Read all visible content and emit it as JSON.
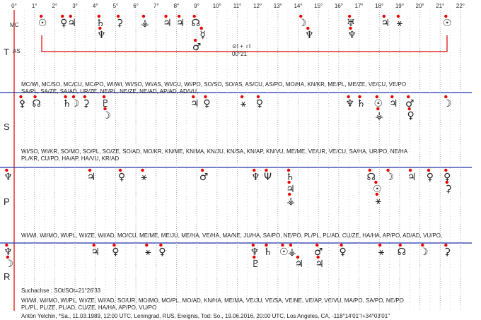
{
  "scale": {
    "ticks": [
      "0°",
      "1°",
      "2°",
      "3°",
      "4°",
      "5°",
      "6°",
      "7°",
      "8°",
      "9°",
      "10°",
      "11°",
      "12°",
      "13°",
      "14°",
      "15°",
      "16°",
      "17°",
      "18°",
      "19°",
      "20°",
      "21°",
      "22°"
    ]
  },
  "side_labels": {
    "top": "MC",
    "bottom": "AS"
  },
  "annotation": {
    "line1": "⊙t + ♁t",
    "line2": "00°21'"
  },
  "rows": [
    {
      "letter": "T",
      "glyphs": [
        {
          "symbol": "☉",
          "deg": 1.4
        },
        {
          "symbol": "♀",
          "deg": 2.45
        },
        {
          "symbol": "♃",
          "deg": 2.85
        },
        {
          "symbol": "♄",
          "deg": 4.25
        },
        {
          "symbol": "♆",
          "deg": 4.3
        },
        {
          "symbol": "⚳",
          "deg": 5.2
        },
        {
          "symbol": "⚶",
          "deg": 6.45
        },
        {
          "symbol": "♃",
          "deg": 7.55
        },
        {
          "symbol": "♃",
          "deg": 8.2
        },
        {
          "symbol": "☊",
          "deg": 8.95
        },
        {
          "symbol": "☿",
          "deg": 9.3
        },
        {
          "symbol": "♂",
          "deg": 9.0
        },
        {
          "symbol": "☽",
          "deg": 14.2
        },
        {
          "symbol": "♆",
          "deg": 14.55
        },
        {
          "symbol": "♅",
          "deg": 16.6
        },
        {
          "symbol": "♆",
          "deg": 16.65
        },
        {
          "symbol": "♃",
          "deg": 18.3
        },
        {
          "symbol": "⚹",
          "deg": 19.0
        },
        {
          "symbol": "☉",
          "deg": 21.35
        }
      ],
      "notes": [
        "MC/WI, MC/SO, MC/CU, MC/PO, WI/WI, WI/SO, WI/AS, WI/CU, WI/PO, SO/SO, SO/AS, AS/CU, AS/PO, MO/HA, KN/KR, ME/PL, ME/ZE, VE/CU, VE/PO",
        "SA/PL, SA/ZE, SA/AD, UR/ZE, NE/PL, NE/ZE, NE/AD, AP/AD, AD/VU,"
      ]
    },
    {
      "letter": "S",
      "glyphs": [
        {
          "symbol": "⚴",
          "deg": 0.4
        },
        {
          "symbol": "☊",
          "deg": 1.1
        },
        {
          "symbol": "♄",
          "deg": 2.6
        },
        {
          "symbol": "☽",
          "deg": 3.0
        },
        {
          "symbol": "⚳",
          "deg": 3.55
        },
        {
          "symbol": "♇",
          "deg": 4.5
        },
        {
          "symbol": "☽",
          "deg": 4.55
        },
        {
          "symbol": "♃",
          "deg": 8.9
        },
        {
          "symbol": "♀",
          "deg": 9.5
        },
        {
          "symbol": "⚹",
          "deg": 11.3
        },
        {
          "symbol": "♀",
          "deg": 12.1
        },
        {
          "symbol": "♆",
          "deg": 16.55
        },
        {
          "symbol": "♄",
          "deg": 17.1
        },
        {
          "symbol": "☉",
          "deg": 17.95
        },
        {
          "symbol": "⚶",
          "deg": 18.0
        },
        {
          "symbol": "♃",
          "deg": 18.7
        },
        {
          "symbol": "♂",
          "deg": 19.5
        },
        {
          "symbol": "♀",
          "deg": 19.55
        },
        {
          "symbol": "☽",
          "deg": 21.35
        }
      ],
      "notes": [
        "WI/SO, WI/KR, SO/MO, SO/PL, SO/ZE, SO/AD, MO/KR, KN/ME, KN/MA, KN/JU, KN/SA, KN/AP, KN/VU, ME/ME, VE/UR, VE/CU, SA/HA, UR/PO, NE/HA",
        "PL/KR, CU/PO, HA/AP, HA/VU, KR/AD"
      ]
    },
    {
      "letter": "P",
      "glyphs": [
        {
          "symbol": "♆",
          "deg": -0.3
        },
        {
          "symbol": "♃",
          "deg": 3.8
        },
        {
          "symbol": "♀",
          "deg": 5.3
        },
        {
          "symbol": "⚹",
          "deg": 6.4
        },
        {
          "symbol": "♂",
          "deg": 9.35
        },
        {
          "symbol": "♆",
          "deg": 11.9
        },
        {
          "symbol": "Ψ",
          "deg": 12.5
        },
        {
          "symbol": "♄",
          "deg": 13.6
        },
        {
          "symbol": "♃",
          "deg": 13.62
        },
        {
          "symbol": "⚶",
          "deg": 13.64
        },
        {
          "symbol": "☊",
          "deg": 17.6
        },
        {
          "symbol": "☉",
          "deg": 17.9
        },
        {
          "symbol": "⚹",
          "deg": 17.95
        },
        {
          "symbol": "☽",
          "deg": 18.5
        },
        {
          "symbol": "♃",
          "deg": 19.6
        },
        {
          "symbol": "♀",
          "deg": 20.5
        },
        {
          "symbol": "♀",
          "deg": 21.35
        },
        {
          "symbol": "⚳",
          "deg": 21.4
        }
      ],
      "notes": [
        "WI/WI, WI/MO, WI/PL, WI/ZE, WI/AD, MO/CU, ME/ME, ME/JU, ME/HA, VE/HA, MA/NE, JU/HA, SA/PO, NE/PO, PL/PL, PL/AD, CU/ZE, HA/HA, AP/PO, AD/AD, VU/PO,"
      ]
    },
    {
      "letter": "R",
      "glyphs": [
        {
          "symbol": "♆",
          "deg": -0.3
        },
        {
          "symbol": "☽",
          "deg": -0.25
        },
        {
          "symbol": "♃",
          "deg": 4.0
        },
        {
          "symbol": "♀",
          "deg": 5.0
        },
        {
          "symbol": "⚹",
          "deg": 6.6
        },
        {
          "symbol": "♀",
          "deg": 7.3
        },
        {
          "symbol": "♆",
          "deg": 11.85
        },
        {
          "symbol": "♇",
          "deg": 11.9
        },
        {
          "symbol": "♄",
          "deg": 12.5
        },
        {
          "symbol": "☉",
          "deg": 13.3
        },
        {
          "symbol": "⚶",
          "deg": 13.7
        },
        {
          "symbol": "♃",
          "deg": 14.05
        },
        {
          "symbol": "♂",
          "deg": 15.0
        },
        {
          "symbol": "♃",
          "deg": 15.05
        },
        {
          "symbol": "♀",
          "deg": 16.2
        },
        {
          "symbol": "⚹",
          "deg": 18.1
        },
        {
          "symbol": "☊",
          "deg": 19.1
        },
        {
          "symbol": "☽",
          "deg": 20.2
        },
        {
          "symbol": "⚳",
          "deg": 21.35
        }
      ],
      "notes": []
    }
  ],
  "footer": {
    "search_axis": "Suchachse : SOt/SOt=21°26'33",
    "lines": [
      "WI/WI, WI/MO, WI/PL, WI/ZE, WI/AD, SO/UR, MO/MO, MO/PL, MO/AD, KN/HA, ME/MA, VE/JU, VE/SA, VE/NE, VE/AP, VE/VU, MA/PO, SA/PO, NE/PO",
      "PL/PL, PL/ZE, PL/AD, CU/ZE, HA/HA, AP/PO, VU/PO"
    ],
    "person": "Antön Yelchin, *Sa., 11.03.1989, 12:00 UTC, Leningrad, RUS, Ereignis, Tod: So., 19.06.2016, 20:00 UTC, Los Angeles, CA, -118°14'01\"/+34°03'01\""
  }
}
